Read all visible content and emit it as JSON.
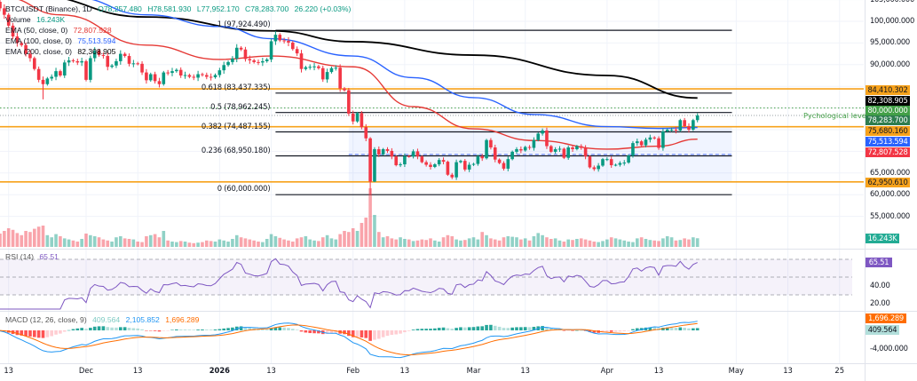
{
  "header": {
    "symbol": "BTC/USDT (Binance), 1D",
    "open": "O78,257.480",
    "high": "H78,581.930",
    "low": "L77,952.170",
    "close": "C78,283.700",
    "change": "26.220 (+0.03%)",
    "volume_label": "Volume",
    "volume_value": "16.243K",
    "ema50_label": "EMA (50, close, 0)",
    "ema50_value": "72,807.528",
    "ema100_label": "EMA (100, close, 0)",
    "ema100_value": "75,513.594",
    "ema200_label": "EMA (200, close, 0)",
    "ema200_value": "82,308.905"
  },
  "colors": {
    "up": "#089981",
    "down": "#f23645",
    "ema50": "#e53935",
    "ema100": "#2962ff",
    "ema200": "#000000",
    "level": "#f7a21b",
    "fib": "#131722",
    "rsi": "#7e57c2",
    "macd": "#2196f3",
    "signal": "#ff6d00",
    "psych": "#43a047"
  },
  "chart_data": {
    "type": "candlestick",
    "title": "BTC/USDT (Binance), 1D",
    "ylim": [
      52000,
      105000
    ],
    "price_ticks": [
      "105,000.000",
      "100,000.000",
      "95,000.000",
      "90,000.000",
      "65,000.000",
      "60,000.000",
      "55,000.000"
    ],
    "price_tick_values": [
      105000,
      100000,
      95000,
      90000,
      65000,
      60000,
      55000
    ],
    "time_ticks": [
      {
        "label": "13",
        "date": "2025-11-13"
      },
      {
        "label": "Dec",
        "date": "2025-12-01"
      },
      {
        "label": "13",
        "date": "2025-12-13"
      },
      {
        "label": "2026",
        "date": "2026-01-01"
      },
      {
        "label": "13",
        "date": "2026-01-13"
      },
      {
        "label": "Feb",
        "date": "2026-02-01"
      },
      {
        "label": "13",
        "date": "2026-02-13"
      },
      {
        "label": "Mar",
        "date": "2026-03-01"
      },
      {
        "label": "13",
        "date": "2026-03-13"
      },
      {
        "label": "Apr",
        "date": "2026-04-01"
      },
      {
        "label": "13",
        "date": "2026-04-13"
      },
      {
        "label": "May",
        "date": "2026-05-01"
      },
      {
        "label": "13",
        "date": "2026-05-13"
      },
      {
        "label": "25",
        "date": "2026-05-25"
      }
    ],
    "months": [
      {
        "month": "2025-11",
        "from_day": 10,
        "close": [
          104500,
          103000,
          101500,
          99000,
          96500,
          95000,
          94500,
          92500,
          91500,
          89000,
          86500,
          85500,
          86800,
          87200,
          88500,
          87500,
          90500,
          91000,
          90800,
          90500,
          90800
        ],
        "volume_k": [
          28,
          25,
          30,
          35,
          32,
          26,
          22,
          30,
          28,
          34,
          38,
          40,
          22,
          18,
          24,
          20,
          16,
          14,
          12,
          10,
          15
        ]
      },
      {
        "month": "2025-12",
        "from_day": 1,
        "close": [
          86500,
          91500,
          93200,
          92200,
          92000,
          89500,
          89800,
          90800,
          92500,
          92000,
          90200,
          90300,
          90200,
          88200,
          86400,
          87800,
          86200,
          85500,
          88200,
          88100,
          88500,
          88800,
          87500,
          87600,
          87200,
          87000,
          87800,
          87600,
          87200,
          87100,
          87600
        ],
        "volume_k": [
          25,
          22,
          20,
          18,
          14,
          12,
          10,
          18,
          20,
          16,
          15,
          14,
          10,
          9,
          20,
          22,
          24,
          18,
          30,
          12,
          10,
          9,
          11,
          10,
          8,
          7,
          8,
          9,
          12,
          11,
          10
        ]
      },
      {
        "month": "2026-01",
        "from_day": 1,
        "close": [
          88700,
          89900,
          90600,
          91400,
          93900,
          93500,
          91300,
          91000,
          90600,
          90500,
          90800,
          91200,
          95400,
          96900,
          95600,
          95500,
          95100,
          93600,
          92600,
          89000,
          89400,
          89500,
          89600,
          89200,
          86600,
          88300,
          89200,
          89300,
          84500,
          84100,
          78700
        ],
        "volume_k": [
          14,
          12,
          10,
          15,
          22,
          18,
          16,
          14,
          12,
          10,
          9,
          15,
          24,
          20,
          17,
          14,
          12,
          10,
          16,
          18,
          20,
          14,
          12,
          11,
          18,
          22,
          16,
          14,
          24,
          30,
          28
        ]
      },
      {
        "month": "2026-02",
        "from_day": 1,
        "close": [
          76900,
          78800,
          75600,
          73000,
          63000,
          70500,
          69300,
          70500,
          70100,
          68800,
          66800,
          67000,
          68900,
          68800,
          70000,
          68800,
          67500,
          66900,
          66400,
          67000,
          68000,
          67600,
          64600,
          64000,
          67500,
          67800,
          65800,
          66900
        ],
        "volume_k": [
          35,
          30,
          45,
          55,
          110,
          60,
          28,
          18,
          20,
          16,
          14,
          18,
          15,
          14,
          11,
          12,
          14,
          13,
          16,
          12,
          10,
          18,
          22,
          20,
          14,
          12,
          13,
          16
        ]
      },
      {
        "month": "2026-03",
        "from_day": 1,
        "close": [
          67100,
          68800,
          68400,
          72600,
          70900,
          68100,
          67300,
          66000,
          68200,
          69900,
          70500,
          70200,
          71000,
          70800,
          72600,
          74100,
          74800,
          71200,
          69900,
          70500,
          70600,
          68500,
          70900,
          70500,
          71200,
          70800,
          68800,
          66300,
          65900,
          66700,
          68200
        ],
        "volume_k": [
          18,
          14,
          28,
          22,
          16,
          14,
          12,
          18,
          20,
          19,
          18,
          14,
          16,
          12,
          20,
          26,
          22,
          18,
          15,
          16,
          12,
          10,
          14,
          13,
          15,
          16,
          14,
          12,
          10,
          9,
          11
        ]
      },
      {
        "month": "2026-04",
        "from_day": 1,
        "close": [
          68200,
          66800,
          66900,
          67300,
          67400,
          69000,
          71900,
          72300,
          71400,
          72700,
          73200,
          73000,
          70800,
          74600,
          75000,
          75000,
          74800,
          77200,
          75800,
          75000,
          77200,
          78283.7
        ],
        "volume_k": [
          14,
          18,
          16,
          14,
          12,
          10,
          9,
          16,
          18,
          15,
          13,
          12,
          11,
          16,
          20,
          18,
          12,
          13,
          16,
          14,
          18,
          16.243
        ]
      }
    ],
    "wick_lows": {
      "2025-11-21": 82000,
      "2026-02-05": 60000,
      "2026-02-06": 62900
    },
    "ema": [
      {
        "name": "EMA (200, close, 0)",
        "color_key": "ema200",
        "points": [
          [
            "2025-11-18",
            106000
          ],
          [
            "2025-12-15",
            101000
          ],
          [
            "2026-01-13",
            97800
          ],
          [
            "2026-02-01",
            95300
          ],
          [
            "2026-03-01",
            92200
          ],
          [
            "2026-04-01",
            87500
          ],
          [
            "2026-04-22",
            82308.905
          ]
        ]
      },
      {
        "name": "EMA (100, close, 0)",
        "color_key": "ema100",
        "points": [
          [
            "2025-11-28",
            105500
          ],
          [
            "2025-12-15",
            101500
          ],
          [
            "2026-01-01",
            98800
          ],
          [
            "2026-01-13",
            96000
          ],
          [
            "2026-02-01",
            92000
          ],
          [
            "2026-02-15",
            87000
          ],
          [
            "2026-03-01",
            82400
          ],
          [
            "2026-03-15",
            78500
          ],
          [
            "2026-04-01",
            75700
          ],
          [
            "2026-04-13",
            75300
          ],
          [
            "2026-04-22",
            75513.594
          ]
        ]
      },
      {
        "name": "EMA (50, close, 0)",
        "color_key": "ema50",
        "points": [
          [
            "2025-11-12",
            105500
          ],
          [
            "2025-11-25",
            101500
          ],
          [
            "2025-12-15",
            94500
          ],
          [
            "2026-01-01",
            91200
          ],
          [
            "2026-01-13",
            92000
          ],
          [
            "2026-02-01",
            89500
          ],
          [
            "2026-02-15",
            80300
          ],
          [
            "2026-03-01",
            75200
          ],
          [
            "2026-03-15",
            72500
          ],
          [
            "2026-04-01",
            70500
          ],
          [
            "2026-04-13",
            71200
          ],
          [
            "2026-04-22",
            72807.528
          ]
        ]
      }
    ],
    "fib": {
      "from_date": "2026-01-14",
      "to_date": "2026-04-30",
      "levels": [
        {
          "label": "1 (97,924.490)",
          "value": 97924.49
        },
        {
          "label": "0.618 (83,437.335)",
          "value": 83437.335
        },
        {
          "label": "0.5 (78,962.245)",
          "value": 78962.245
        },
        {
          "label": "0.382 (74,487.155)",
          "value": 74487.155
        },
        {
          "label": "0.236 (68,950.180)",
          "value": 68950.18
        },
        {
          "label": "0 (60,000.000)",
          "value": 60000
        }
      ]
    },
    "horizontal_levels": [
      84410.302,
      75680.16,
      62950.61
    ],
    "psych_level": {
      "value": 80000,
      "label": "Pychological level"
    },
    "range_box": {
      "from_date": "2026-01-31",
      "to_date": "2026-04-30",
      "top": 75680.16,
      "bottom": 62950.61,
      "mid": 69300
    },
    "price_tags": [
      {
        "text": "84,410.302",
        "color_key": "level"
      },
      {
        "text": "82,308.905",
        "color_key": "ema200"
      },
      {
        "text": "80,000.000",
        "color_key": "psych"
      },
      {
        "text": "78,283.700",
        "color_key": "up"
      },
      {
        "text": "75,680.160",
        "color_key": "level"
      },
      {
        "text": "75,513.594",
        "color_key": "ema100"
      },
      {
        "text": "72,807.528",
        "color_key": "ema50"
      },
      {
        "text": "62,950.610",
        "color_key": "level"
      }
    ],
    "volume_tag": "16.243K",
    "rsi": {
      "label": "RSI (14)",
      "value": "65.51",
      "ticks": [
        "40.00",
        "20.00"
      ],
      "levels": [
        70,
        50,
        30
      ]
    },
    "macd": {
      "label": "MACD (12, 26, close, 9)",
      "hist": "409.564",
      "macd": "2,105.852",
      "signal": "1,696.289",
      "tick": "-4,000.000"
    }
  }
}
